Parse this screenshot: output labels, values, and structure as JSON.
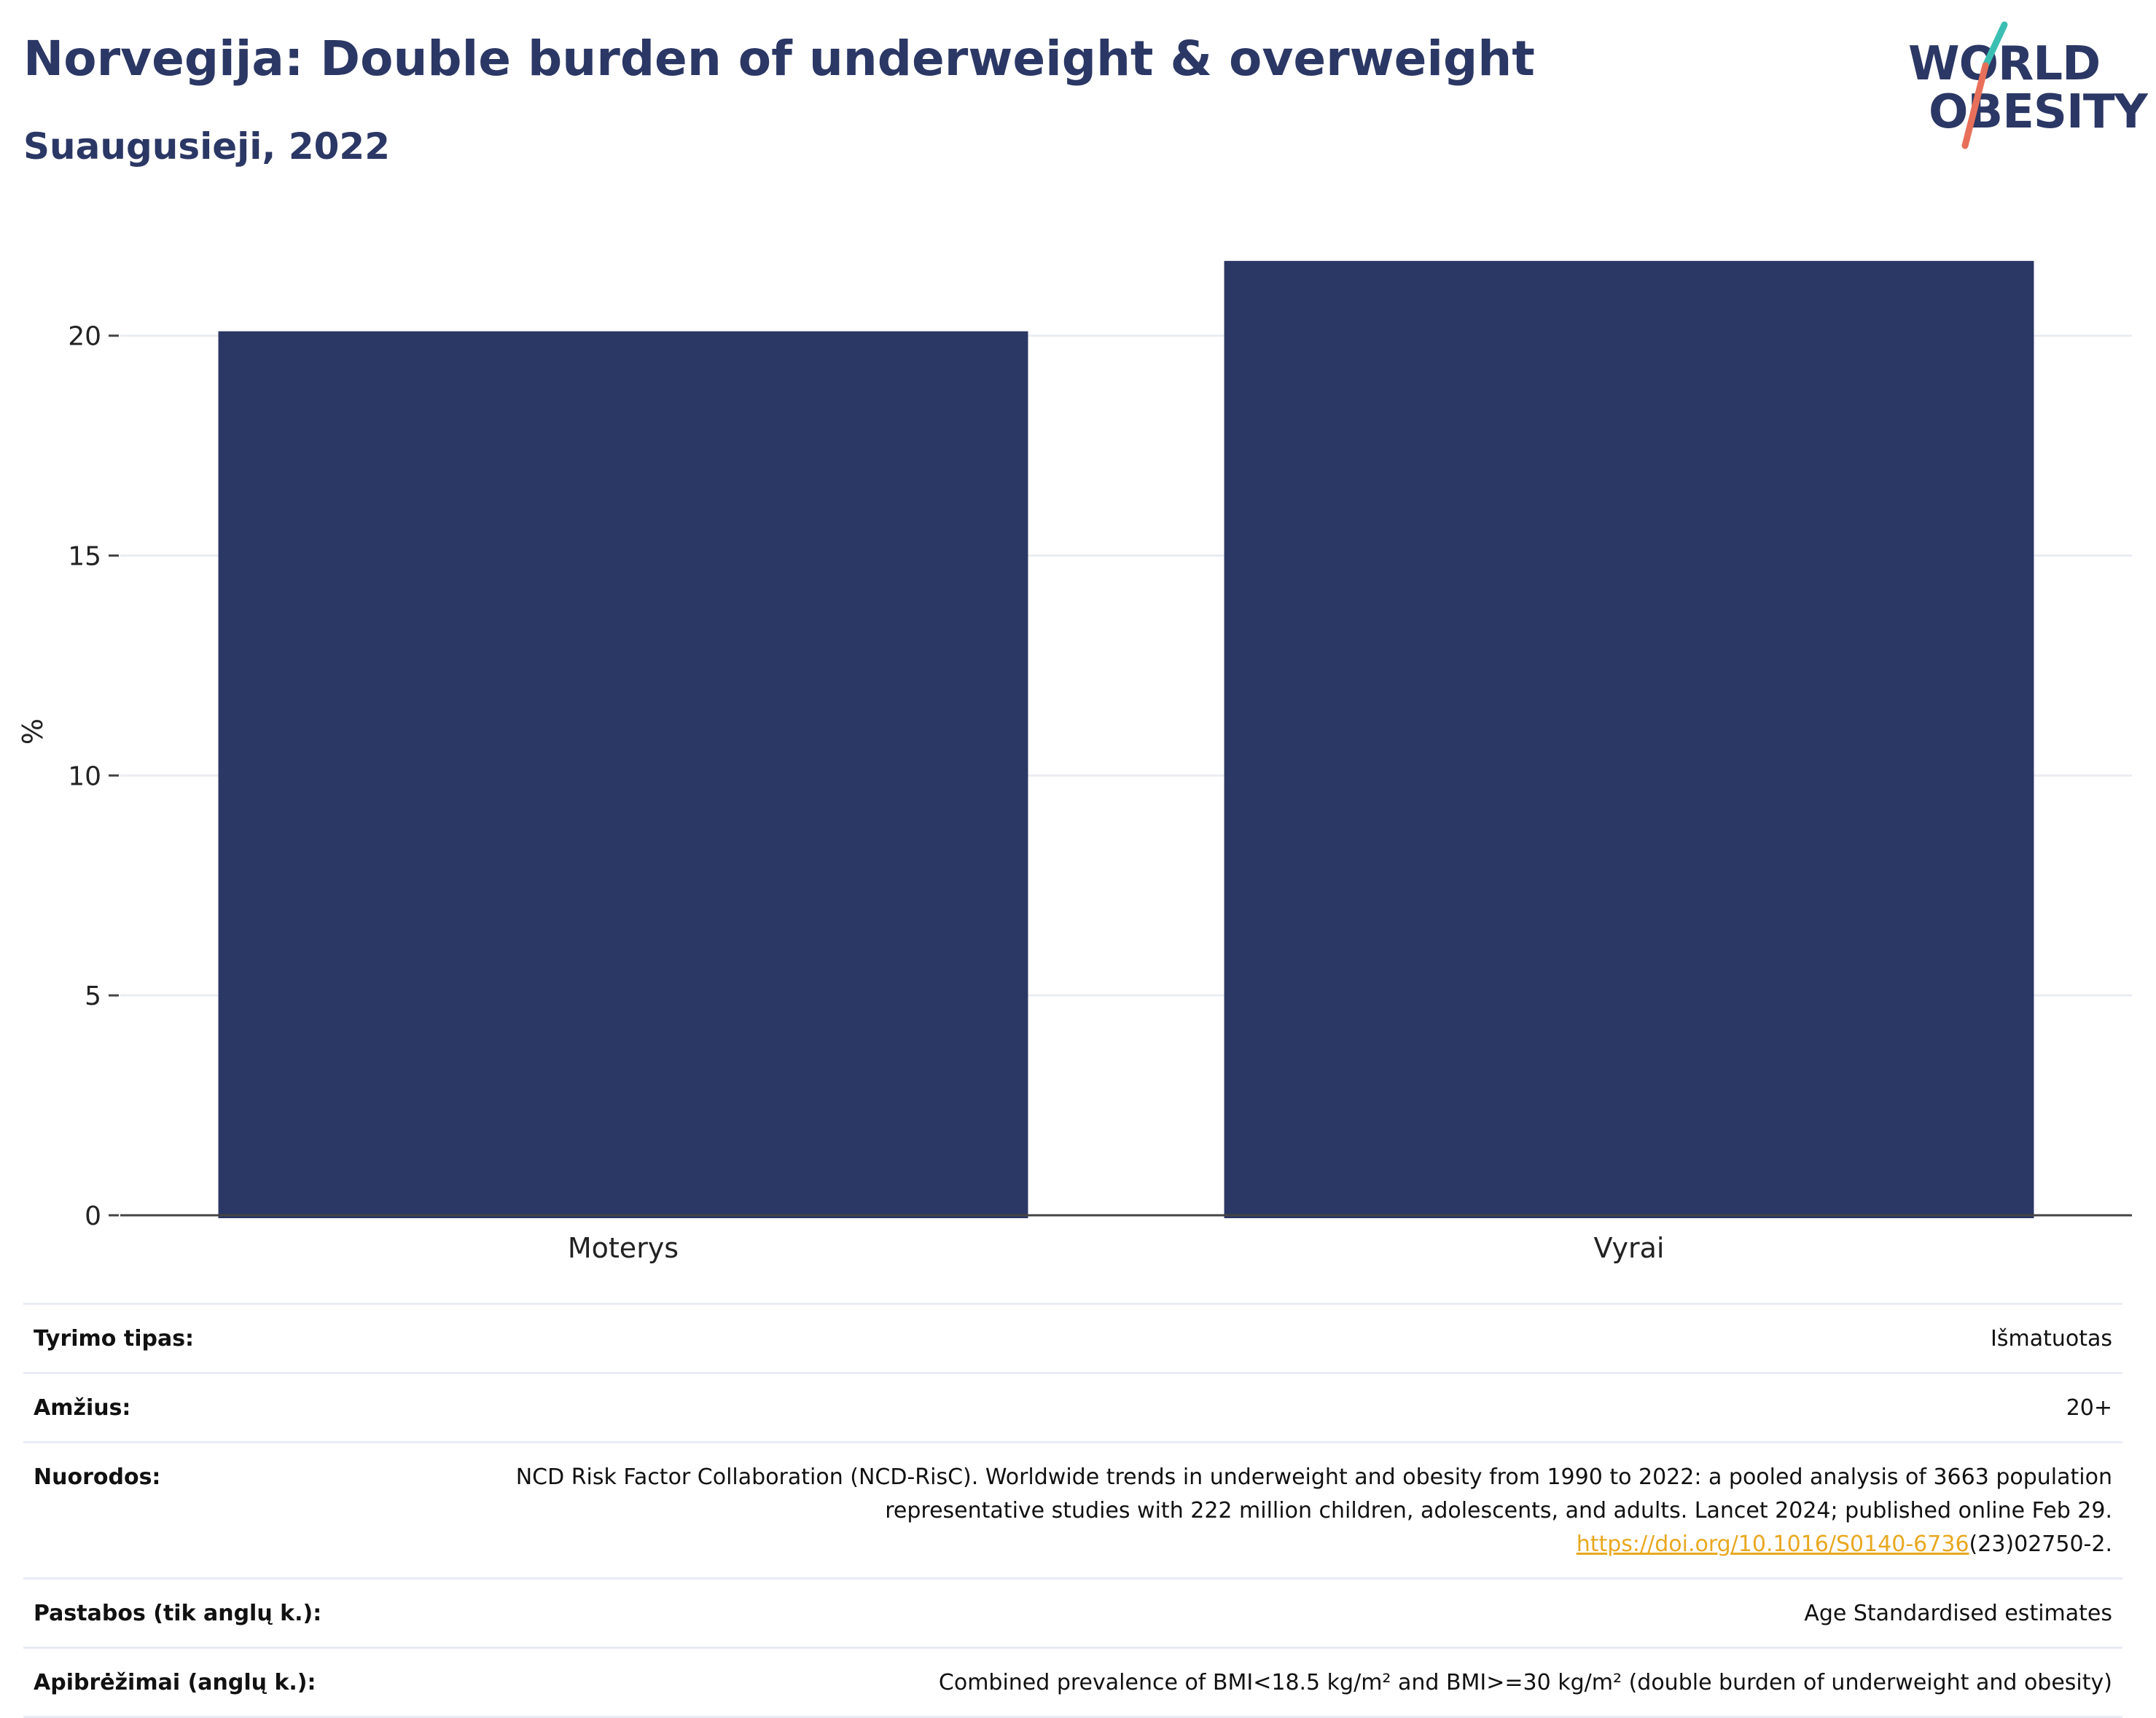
{
  "title": "Norvegija: Double burden of underweight & overweight",
  "subtitle": "Suaugusieji, 2022",
  "logo": {
    "line1": "WORLD",
    "line2": "OBESITY",
    "colors": [
      "#2b3764",
      "#3bbfb2",
      "#e8705a"
    ]
  },
  "chart_data": {
    "type": "bar",
    "categories": [
      "Moterys",
      "Vyrai"
    ],
    "series": [
      {
        "values": [
          20.1,
          21.7
        ]
      }
    ],
    "ylabel": "%",
    "xlabel": "",
    "ylim": [
      0,
      22
    ],
    "yticks": [
      0,
      5,
      10,
      15,
      20
    ],
    "grid": true,
    "bar_color": "#2b3764"
  },
  "meta": {
    "study_type": {
      "label": "Tyrimo tipas:",
      "value": "Išmatuotas"
    },
    "age": {
      "label": "Amžius:",
      "value": "20+"
    },
    "references": {
      "label": "Nuorodos:",
      "text": "NCD Risk Factor Collaboration (NCD-RisC). Worldwide trends in underweight and obesity from 1990 to 2022: a pooled analysis of 3663 population representative studies with 222 million children, adolescents, and adults. Lancet 2024; published online Feb 29.",
      "link": "https://doi.org/10.1016/S0140-6736",
      "link_suffix": "(23)02750-2."
    },
    "notes": {
      "label": "Pastabos (tik anglų k.):",
      "value": "Age Standardised estimates"
    },
    "definitions": {
      "label": "Apibrėžimai (anglų k.):",
      "value": "Combined prevalence of BMI<18.5 kg/m² and BMI>=30 kg/m² (double burden of underweight and obesity)"
    }
  }
}
